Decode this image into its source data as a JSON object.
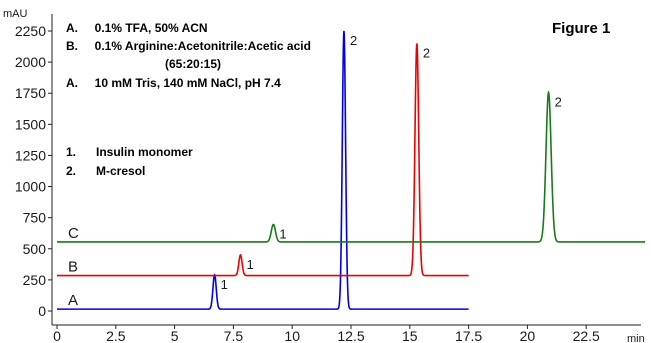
{
  "chart_data": {
    "type": "line",
    "title": "Figure 1",
    "xlabel": "min",
    "ylabel": "mAU",
    "xlim": [
      0,
      25
    ],
    "ylim": [
      0,
      2300
    ],
    "xticks": [
      "0",
      "2.5",
      "5",
      "7.5",
      "10",
      "12.5",
      "15",
      "17.5",
      "20",
      "22.5"
    ],
    "xtick_values": [
      0,
      2.5,
      5,
      7.5,
      10,
      12.5,
      15,
      17.5,
      20,
      22.5
    ],
    "yticks": [
      "0",
      "250",
      "500",
      "750",
      "1000",
      "1250",
      "1500",
      "1750",
      "2000",
      "2250"
    ],
    "ytick_values": [
      0,
      250,
      500,
      750,
      1000,
      1250,
      1500,
      1750,
      2000,
      2250
    ],
    "grid": false,
    "legend_lines": [
      "A.     0.1% TFA, 50% ACN",
      "B.     0.1% Arginine:Acetonitrile:Acetic acid",
      "(65:20:15)",
      "A.     10 mM Tris, 140 mM NaCl, pH 7.4",
      "1.      Insulin monomer",
      "2.      M-cresol"
    ],
    "series": [
      {
        "name": "A",
        "color": "#0000ee",
        "x_range": [
          0,
          17.5
        ],
        "baseline": 15,
        "peaks": [
          {
            "label": "1",
            "x": 6.7,
            "height": 275,
            "width": 0.07
          },
          {
            "label": "2",
            "x": 12.2,
            "height": 2235,
            "width": 0.07
          }
        ]
      },
      {
        "name": "B",
        "color": "#ee0000",
        "x_range": [
          0,
          17.5
        ],
        "baseline": 285,
        "peaks": [
          {
            "label": "1",
            "x": 7.8,
            "height": 165,
            "width": 0.07
          },
          {
            "label": "2",
            "x": 15.3,
            "height": 1865,
            "width": 0.08
          }
        ]
      },
      {
        "name": "C",
        "color": "#1a7a1a",
        "x_range": [
          0,
          25
        ],
        "baseline": 555,
        "peaks": [
          {
            "label": "1",
            "x": 9.2,
            "height": 140,
            "width": 0.09
          },
          {
            "label": "2",
            "x": 20.9,
            "height": 1200,
            "width": 0.11
          }
        ]
      }
    ]
  }
}
